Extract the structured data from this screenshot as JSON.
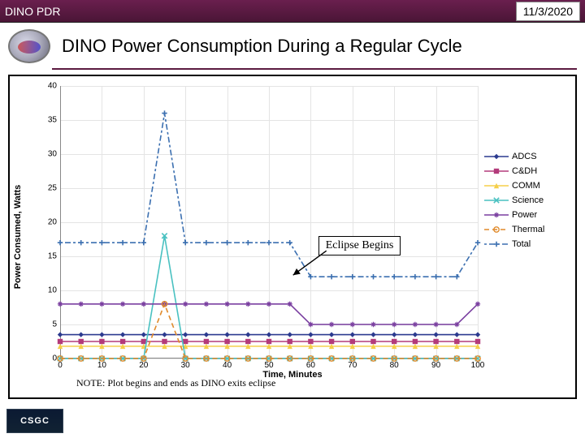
{
  "header": {
    "left": "DINO PDR",
    "right": "11/3/2020"
  },
  "title": "DINO Power Consumption During a Regular Cycle",
  "chart": {
    "type": "line",
    "xlabel": "Time, Minutes",
    "ylabel": "Power Consumed, Watts",
    "xlim": [
      0,
      100
    ],
    "xtick_step": 10,
    "ylim": [
      0,
      40
    ],
    "ytick_step": 5,
    "background_color": "#ffffff",
    "grid_color": "#e4e4e4",
    "x": [
      0,
      5,
      10,
      15,
      20,
      25,
      30,
      35,
      40,
      45,
      50,
      55,
      60,
      65,
      70,
      75,
      80,
      85,
      90,
      95,
      100
    ],
    "series": [
      {
        "name": "ADCS",
        "color": "#2b3a8f",
        "marker": "diamond",
        "dash": "none",
        "y": [
          3.5,
          3.5,
          3.5,
          3.5,
          3.5,
          3.5,
          3.5,
          3.5,
          3.5,
          3.5,
          3.5,
          3.5,
          3.5,
          3.5,
          3.5,
          3.5,
          3.5,
          3.5,
          3.5,
          3.5,
          3.5
        ]
      },
      {
        "name": "C&DH",
        "color": "#b33b7b",
        "marker": "square",
        "dash": "none",
        "y": [
          2.5,
          2.5,
          2.5,
          2.5,
          2.5,
          2.5,
          2.5,
          2.5,
          2.5,
          2.5,
          2.5,
          2.5,
          2.5,
          2.5,
          2.5,
          2.5,
          2.5,
          2.5,
          2.5,
          2.5,
          2.5
        ]
      },
      {
        "name": "COMM",
        "color": "#f5cf4a",
        "marker": "triangle",
        "dash": "none",
        "y": [
          1.8,
          1.8,
          1.8,
          1.8,
          1.8,
          1.8,
          1.8,
          1.8,
          1.8,
          1.8,
          1.8,
          1.8,
          1.8,
          1.8,
          1.8,
          1.8,
          1.8,
          1.8,
          1.8,
          1.8,
          1.8
        ]
      },
      {
        "name": "Science",
        "color": "#49c1c1",
        "marker": "x",
        "dash": "none",
        "y": [
          0,
          0,
          0,
          0,
          0,
          18,
          0,
          0,
          0,
          0,
          0,
          0,
          0,
          0,
          0,
          0,
          0,
          0,
          0,
          0,
          0
        ]
      },
      {
        "name": "Power",
        "color": "#7a3fa0",
        "marker": "star",
        "dash": "none",
        "y": [
          8,
          8,
          8,
          8,
          8,
          8,
          8,
          8,
          8,
          8,
          8,
          8,
          5,
          5,
          5,
          5,
          5,
          5,
          5,
          5,
          8
        ]
      },
      {
        "name": "Thermal",
        "color": "#e08a2b",
        "marker": "circle",
        "dash": "6,4",
        "y": [
          0,
          0,
          0,
          0,
          0,
          8,
          0,
          0,
          0,
          0,
          0,
          0,
          0,
          0,
          0,
          0,
          0,
          0,
          0,
          0,
          0
        ]
      },
      {
        "name": "Total",
        "color": "#3b6fb0",
        "marker": "plus",
        "dash": "3,3,7,3",
        "y": [
          17,
          17,
          17,
          17,
          17,
          36,
          17,
          17,
          17,
          17,
          17,
          17,
          12,
          12,
          12,
          12,
          12,
          12,
          12,
          12,
          17
        ]
      }
    ],
    "callout": {
      "text": "Eclipse Begins",
      "target_x": 55,
      "target_y": 12
    },
    "note": "NOTE: Plot begins and ends as DINO exits eclipse"
  },
  "footer": {
    "logo_text": "CSGC"
  }
}
